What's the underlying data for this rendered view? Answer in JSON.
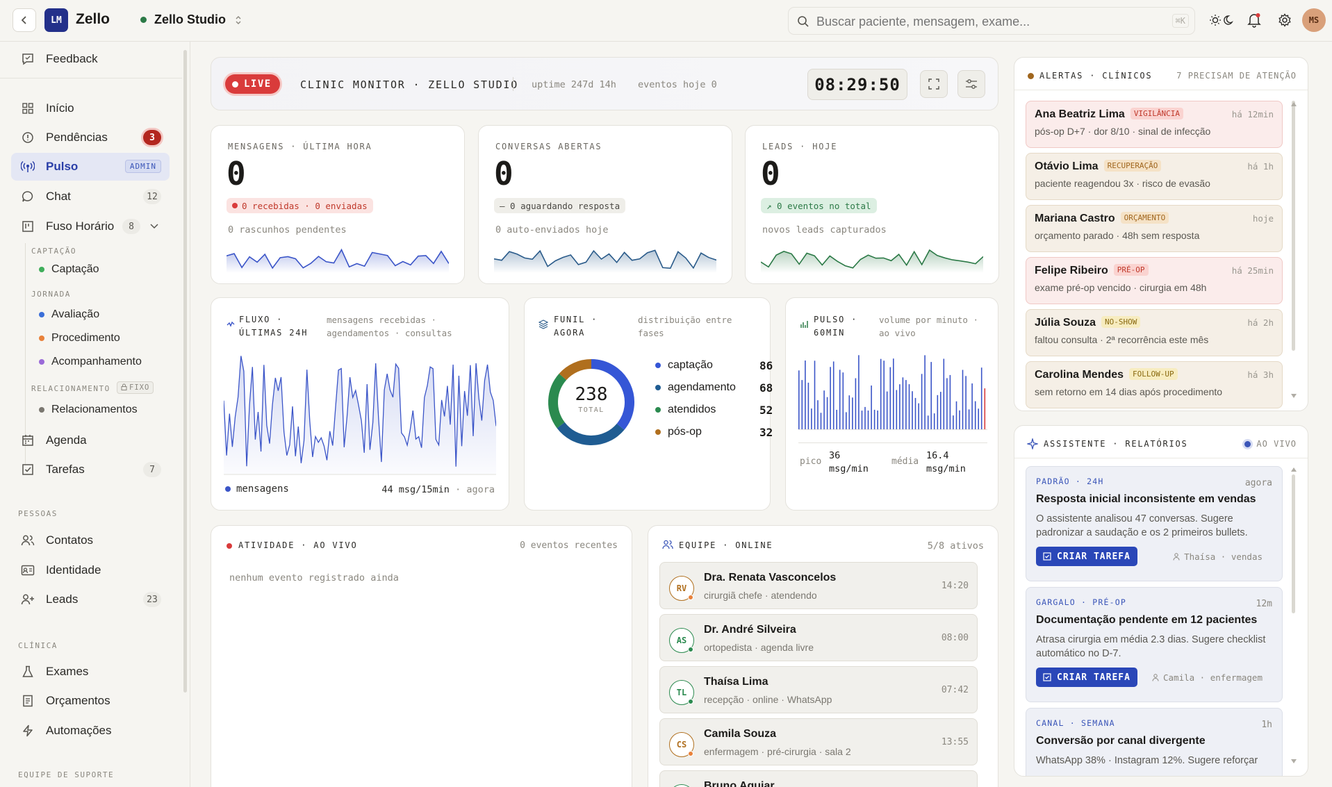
{
  "app": {
    "logo": "LM",
    "name": "Zello",
    "workspace": "Zello Studio"
  },
  "search": {
    "placeholder": "Buscar paciente, mensagem, exame...",
    "shortcut": "⌘K"
  },
  "user": {
    "initials": "MS"
  },
  "sidebar": {
    "feedback": "Feedback",
    "items": [
      {
        "label": "Início",
        "icon": "grid-icon"
      },
      {
        "label": "Pendências",
        "icon": "alert-circle-icon",
        "count": "3"
      },
      {
        "label": "Pulso",
        "icon": "broadcast-icon",
        "badge": "ADMIN"
      },
      {
        "label": "Chat",
        "icon": "message-icon",
        "count": "12"
      },
      {
        "label": "Fuso Horário",
        "icon": "columns-icon",
        "count": "8"
      }
    ],
    "captacao_label": "CAPTAÇÃO",
    "captacao": [
      {
        "label": "Captação",
        "color": "#3fae5b"
      }
    ],
    "jornada_label": "JORNADA",
    "jornada": [
      {
        "label": "Avaliação",
        "color": "#3b6fd8"
      },
      {
        "label": "Procedimento",
        "color": "#e8813a"
      },
      {
        "label": "Acompanhamento",
        "color": "#9a6ad8"
      }
    ],
    "relacionamento_label": "RELACIONAMENTO",
    "fixo": "FIXO",
    "relacionamento": [
      {
        "label": "Relacionamentos",
        "color": "#7a7770"
      }
    ],
    "items2": [
      {
        "label": "Agenda",
        "icon": "calendar-icon"
      },
      {
        "label": "Tarefas",
        "icon": "check-square-icon",
        "count": "7"
      }
    ],
    "pessoas_label": "PESSOAS",
    "pessoas": [
      {
        "label": "Contatos",
        "icon": "users-icon"
      },
      {
        "label": "Identidade",
        "icon": "id-card-icon"
      },
      {
        "label": "Leads",
        "icon": "user-plus-icon",
        "count": "23"
      }
    ],
    "clinica_label": "CLÍNICA",
    "clinica": [
      {
        "label": "Exames",
        "icon": "flask-icon"
      },
      {
        "label": "Orçamentos",
        "icon": "receipt-icon"
      },
      {
        "label": "Automações",
        "icon": "bolt-icon"
      }
    ],
    "suporte_label": "EQUIPE DE SUPORTE"
  },
  "monitor": {
    "live": "LIVE",
    "title": "CLINIC MONITOR · ZELLO STUDIO",
    "uptime": "uptime 247d 14h",
    "events": "eventos hoje 0",
    "clock": "08:29:50"
  },
  "stats": [
    {
      "label": "MENSAGENS · ÚLTIMA HORA",
      "value": "0",
      "pill": "0 recebidas · 0 enviadas",
      "sub": "0 rascunhos pendentes",
      "color": "#3b55c8"
    },
    {
      "label": "CONVERSAS ABERTAS",
      "value": "0",
      "pill": "— 0 aguardando resposta",
      "sub": "0 auto-enviados hoje",
      "color": "#2a5b8a"
    },
    {
      "label": "LEADS · HOJE",
      "value": "0",
      "pill": "↗ 0 eventos no total",
      "sub": "novos leads capturados",
      "color": "#2c7a47"
    }
  ],
  "flow": {
    "title1": "FLUXO ·",
    "title2": "ÚLTIMAS 24H",
    "desc1": "mensagens recebidas ·",
    "desc2": "agendamentos · consultas",
    "legend": "mensagens",
    "rate": "44 msg/15min",
    "when": "· agora"
  },
  "funnel": {
    "title1": "FUNIL ·",
    "title2": "AGORA",
    "desc1": "distribuição entre",
    "desc2": "fases",
    "total": "238",
    "total_label": "TOTAL"
  },
  "chart_data": {
    "type": "pie",
    "categories": [
      "captação",
      "agendamento",
      "atendidos",
      "pós-op"
    ],
    "values": [
      86,
      68,
      52,
      32
    ],
    "colors": [
      "#3556d6",
      "#1f5c92",
      "#2b8a4f",
      "#b06f1e"
    ]
  },
  "pulse": {
    "title1": "PULSO ·",
    "title2": "60MIN",
    "desc1": "volume por minuto ·",
    "desc2": "ao vivo",
    "peak_label": "pico",
    "peak_value": "36",
    "peak_unit": "msg/min",
    "avg_label": "média",
    "avg_value": "16.4",
    "avg_unit": "msg/min"
  },
  "activity": {
    "title": "ATIVIDADE · AO VIVO",
    "count": "0 eventos recentes",
    "empty": "nenhum evento registrado ainda"
  },
  "team": {
    "title": "EQUIPE · ONLINE",
    "count": "5/8 ativos",
    "members": [
      {
        "initials": "RV",
        "name": "Dra. Renata Vasconcelos",
        "role": "cirurgiã chefe · atendendo",
        "time": "14:20",
        "color": "#b06f1e",
        "status": "#e8813a"
      },
      {
        "initials": "AS",
        "name": "Dr. André Silveira",
        "role": "ortopedista · agenda livre",
        "time": "08:00",
        "color": "#2b8a4f",
        "status": "#2b8a4f"
      },
      {
        "initials": "TL",
        "name": "Thaísa Lima",
        "role": "recepção · online · WhatsApp",
        "time": "07:42",
        "color": "#2b8a4f",
        "status": "#2b8a4f"
      },
      {
        "initials": "CS",
        "name": "Camila Souza",
        "role": "enfermagem · pré-cirurgia · sala 2",
        "time": "13:55",
        "color": "#b06f1e",
        "status": "#e8813a"
      },
      {
        "initials": "BA",
        "name": "Bruno Aguiar",
        "role": "",
        "time": "",
        "color": "#2b8a4f",
        "status": "#2b8a4f"
      }
    ]
  },
  "alerts": {
    "title": "ALERTAS · CLÍNICOS",
    "count": "7 PRECISAM DE ATENÇÃO",
    "items": [
      {
        "name": "Ana Beatriz Lima",
        "tag": "VIGILÂNCIA",
        "time": "há 12min",
        "desc": "pós-op D+7 · dor 8/10 · sinal de infecção",
        "bg": "#fbeceb",
        "border": "#f0c8c5",
        "tagbg": "#fad3d0",
        "tagfg": "#c0392b"
      },
      {
        "name": "Otávio Lima",
        "tag": "RECUPERAÇÃO",
        "time": "há 1h",
        "desc": "paciente reagendou 3x · risco de evasão",
        "bg": "#f5efe6",
        "border": "#e5d9c6",
        "tagbg": "#f5e2c6",
        "tagfg": "#a0661e"
      },
      {
        "name": "Mariana Castro",
        "tag": "ORÇAMENTO",
        "time": "hoje",
        "desc": "orçamento parado · 48h sem resposta",
        "bg": "#f5efe6",
        "border": "#e5d9c6",
        "tagbg": "#f5e2c6",
        "tagfg": "#a0661e"
      },
      {
        "name": "Felipe Ribeiro",
        "tag": "PRÉ-OP",
        "time": "há 25min",
        "desc": "exame pré-op vencido · cirurgia em 48h",
        "bg": "#fbeceb",
        "border": "#f0c8c5",
        "tagbg": "#fad3d0",
        "tagfg": "#c0392b"
      },
      {
        "name": "Júlia Souza",
        "tag": "NO-SHOW",
        "time": "há 2h",
        "desc": "faltou consulta · 2ª recorrência este mês",
        "bg": "#f5efe6",
        "border": "#e5d9c6",
        "tagbg": "#f7ecbf",
        "tagfg": "#8a6a10"
      },
      {
        "name": "Carolina Mendes",
        "tag": "FOLLOW-UP",
        "time": "há 3h",
        "desc": "sem retorno em 14 dias após procedimento",
        "bg": "#f5efe6",
        "border": "#e5d9c6",
        "tagbg": "#f7ecbf",
        "tagfg": "#8a6a10"
      }
    ]
  },
  "assistant": {
    "title": "ASSISTENTE · RELATÓRIOS",
    "status": "AO VIVO",
    "cta": "CRIAR TAREFA",
    "items": [
      {
        "cat": "PADRÃO · 24H",
        "time": "agora",
        "title": "Resposta inicial inconsistente em vendas",
        "desc": "O assistente analisou 47 conversas. Sugere padronizar a saudação e os 2 primeiros bullets.",
        "who": "Thaísa · vendas"
      },
      {
        "cat": "GARGALO · PRÉ-OP",
        "time": "12m",
        "title": "Documentação pendente em 12 pacientes",
        "desc": "Atrasa cirurgia em média 2.3 dias. Sugere checklist automático no D-7.",
        "who": "Camila · enfermagem"
      },
      {
        "cat": "CANAL · SEMANA",
        "time": "1h",
        "title": "Conversão por canal divergente",
        "desc": "WhatsApp 38% · Instagram 12%. Sugere reforçar"
      }
    ]
  }
}
